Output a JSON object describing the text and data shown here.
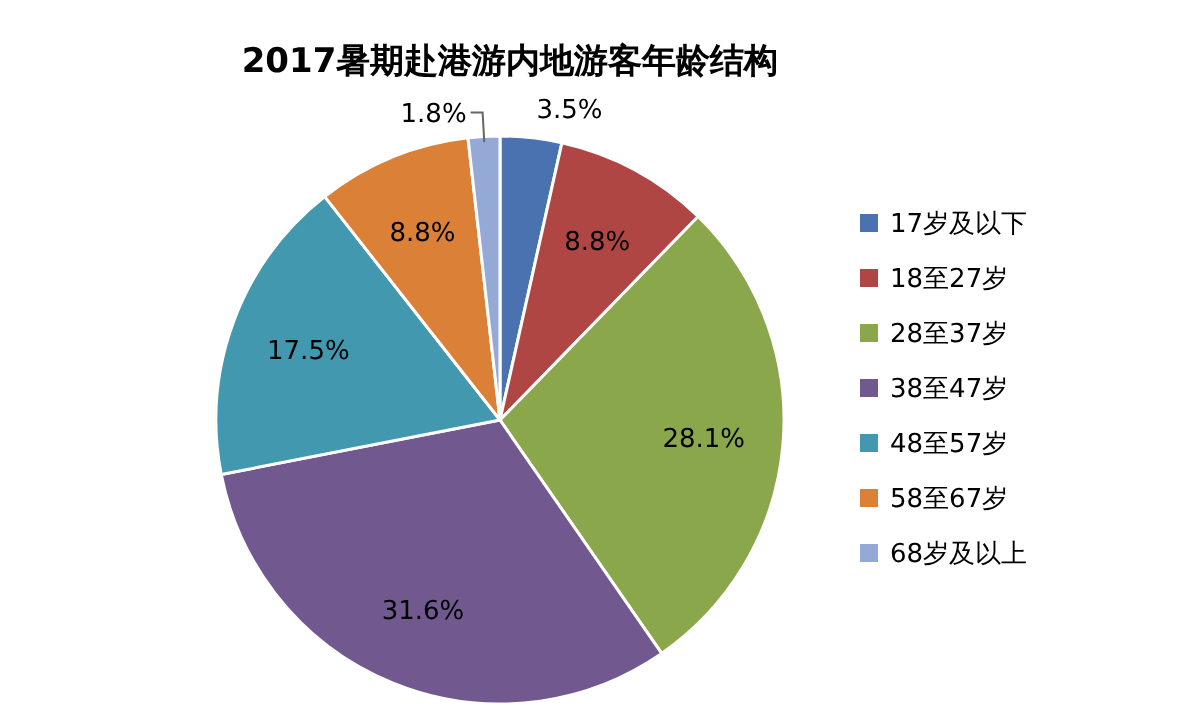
{
  "chart_data": {
    "type": "pie",
    "title": "2017暑期赴港游内地游客年龄结构",
    "categories": [
      "17岁及以下",
      "18至27岁",
      "28至37岁",
      "38至47岁",
      "48至57岁",
      "58至67岁",
      "68岁及以上"
    ],
    "values": [
      3.5,
      8.8,
      28.1,
      31.6,
      17.5,
      8.8,
      1.8
    ],
    "colors": [
      "#4a72b0",
      "#b04644",
      "#8aa84b",
      "#71588f",
      "#4298ae",
      "#da8137",
      "#94a9d6"
    ],
    "value_labels": [
      "3.5%",
      "8.8%",
      "28.1%",
      "31.6%",
      "17.5%",
      "8.8%",
      "1.8%"
    ],
    "legend": "right"
  }
}
